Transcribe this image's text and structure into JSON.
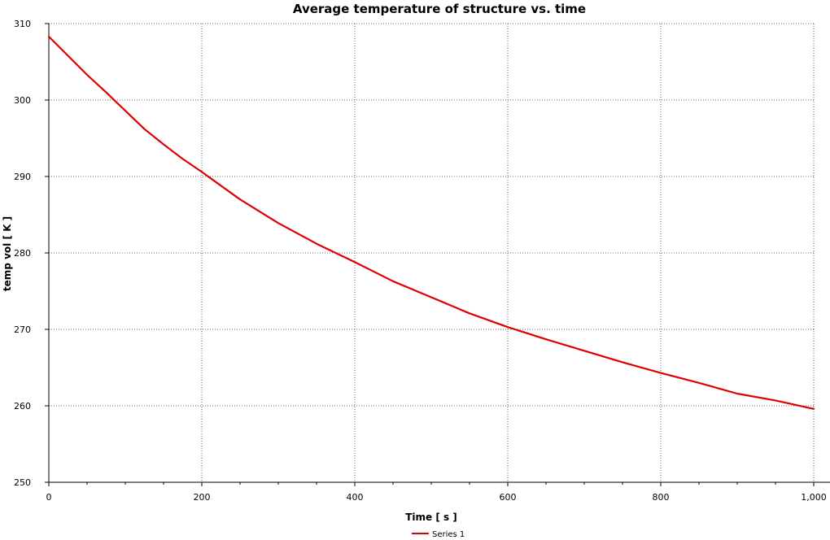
{
  "chart_data": {
    "type": "line",
    "title": "Average temperature of structure vs. time",
    "xlabel": "Time [ s ]",
    "ylabel": "temp vol [ K ]",
    "xlim": [
      0,
      1000
    ],
    "ylim": [
      250,
      310
    ],
    "x_ticks": [
      0,
      200,
      400,
      600,
      800,
      1000
    ],
    "x_tick_labels": [
      "0",
      "200",
      "400",
      "600",
      "800",
      "1,000"
    ],
    "y_ticks": [
      250,
      260,
      270,
      280,
      290,
      300,
      310
    ],
    "y_tick_labels": [
      "250",
      "260",
      "270",
      "280",
      "290",
      "300",
      "310"
    ],
    "grid": true,
    "legend_position": "bottom-center",
    "series": [
      {
        "name": "Series 1",
        "color": "#e00000",
        "x": [
          0,
          25,
          50,
          75,
          100,
          125,
          150,
          175,
          200,
          250,
          300,
          350,
          400,
          450,
          500,
          550,
          600,
          650,
          700,
          750,
          800,
          850,
          900,
          950,
          1000
        ],
        "y": [
          308.3,
          305.8,
          303.3,
          301.0,
          298.6,
          296.2,
          294.2,
          292.3,
          290.6,
          287.0,
          283.9,
          281.2,
          278.8,
          276.3,
          274.2,
          272.1,
          270.3,
          268.7,
          267.2,
          265.7,
          264.3,
          263.0,
          261.6,
          260.7,
          259.6
        ]
      }
    ]
  }
}
